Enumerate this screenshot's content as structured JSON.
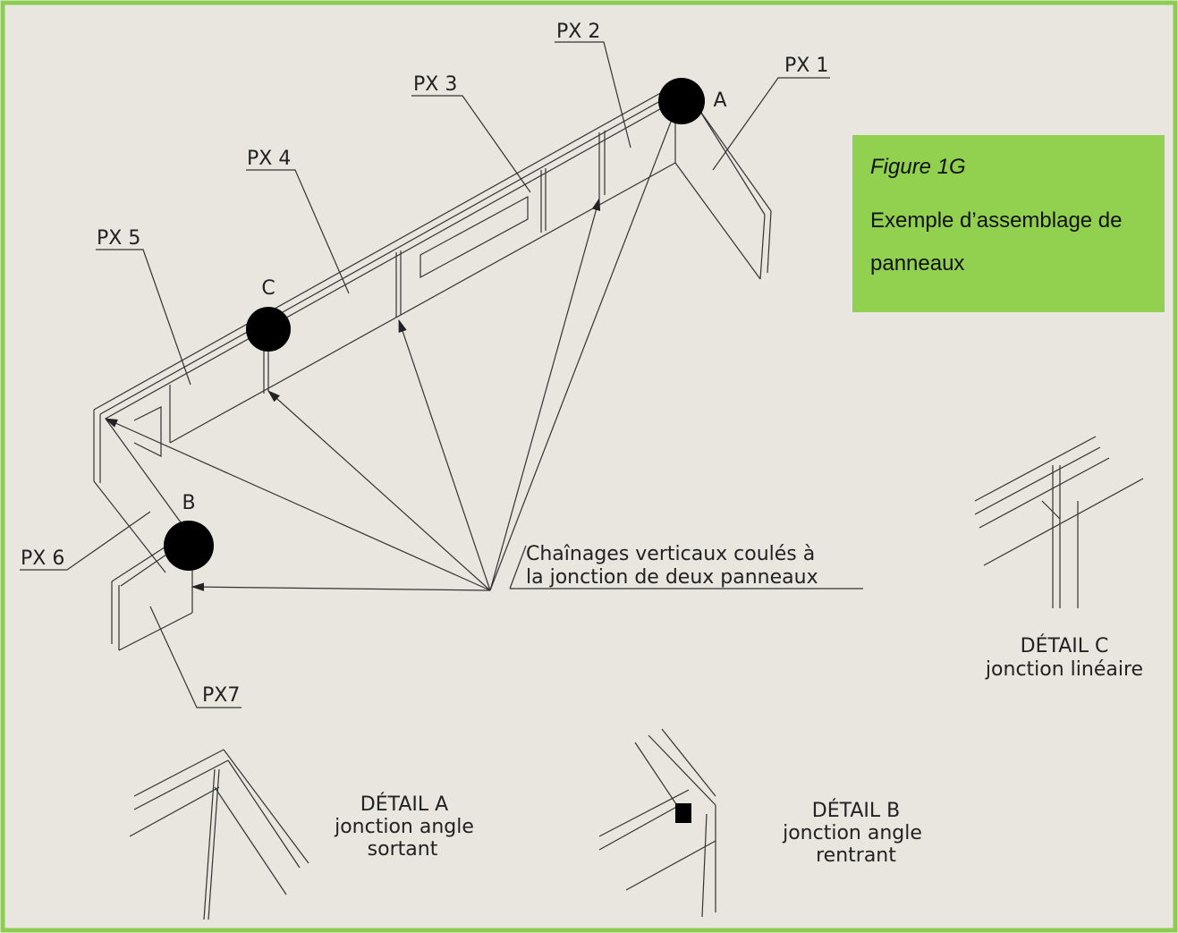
{
  "figure": {
    "number": "Figure 1G",
    "caption": "Exemple d’assemblage de panneaux"
  },
  "panels": [
    "PX 1",
    "PX 2",
    "PX 3",
    "PX 4",
    "PX 5",
    "PX 6",
    "PX7"
  ],
  "junctions": [
    "A",
    "B",
    "C"
  ],
  "annotation": {
    "lines": [
      "Chaînages verticaux coulés à",
      "la jonction de deux panneaux"
    ]
  },
  "details": [
    {
      "title": "DÉTAIL C",
      "lines": [
        "jonction linéaire"
      ]
    },
    {
      "title": "DÉTAIL A",
      "lines": [
        "jonction angle",
        "sortant"
      ]
    },
    {
      "title": "DÉTAIL B",
      "lines": [
        "jonction angle",
        "rentrant"
      ]
    }
  ]
}
